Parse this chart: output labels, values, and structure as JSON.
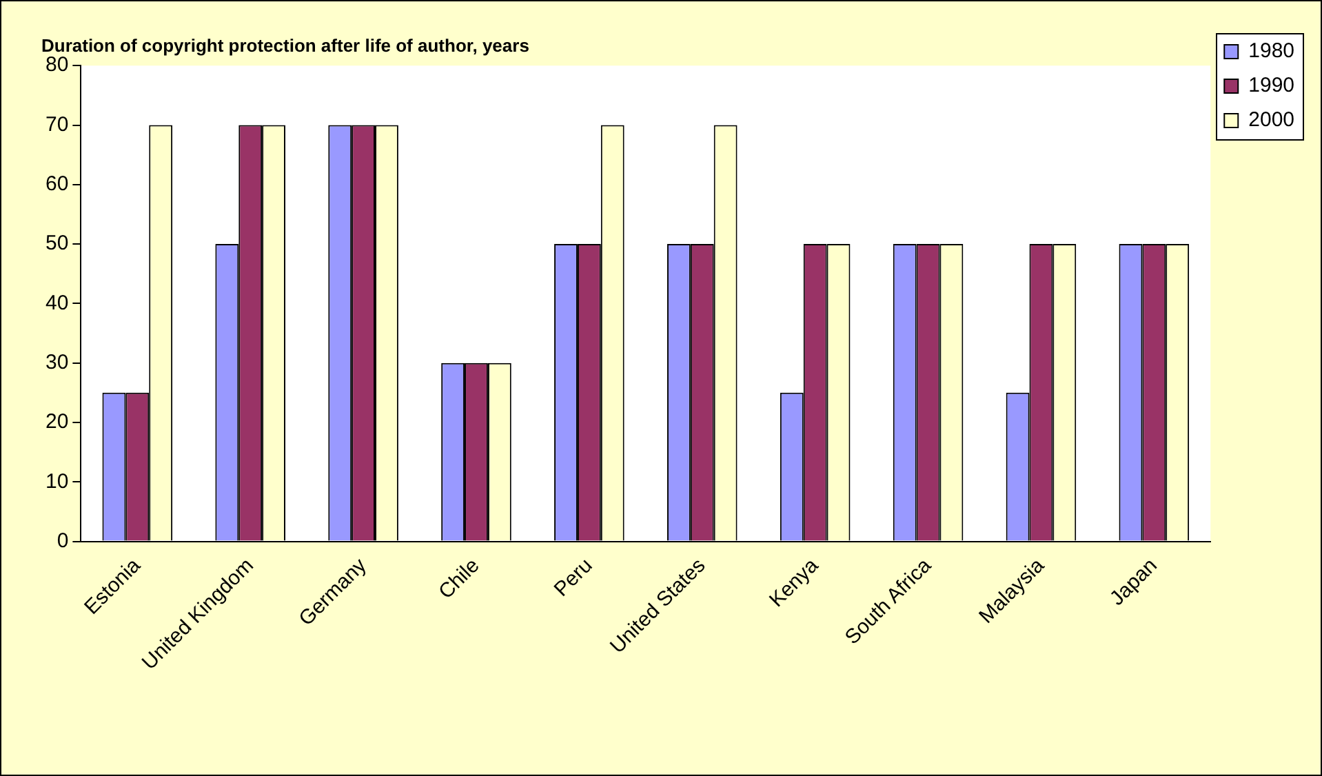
{
  "chart_data": {
    "type": "bar",
    "title": "Duration of copyright protection after life of author, years",
    "categories": [
      "Estonia",
      "United Kingdom",
      "Germany",
      "Chile",
      "Peru",
      "United States",
      "Kenya",
      "South Africa",
      "Malaysia",
      "Japan"
    ],
    "series": [
      {
        "name": "1980",
        "color": "#9999ff",
        "values": [
          25,
          50,
          70,
          30,
          50,
          50,
          25,
          50,
          25,
          50
        ]
      },
      {
        "name": "1990",
        "color": "#993366",
        "values": [
          25,
          70,
          70,
          30,
          50,
          50,
          50,
          50,
          50,
          50
        ]
      },
      {
        "name": "2000",
        "color": "#ffffcc",
        "values": [
          70,
          70,
          70,
          30,
          70,
          70,
          50,
          50,
          50,
          50
        ]
      }
    ],
    "ylim": [
      0,
      80
    ],
    "yticks": [
      0,
      10,
      20,
      30,
      40,
      50,
      60,
      70,
      80
    ],
    "grid": false,
    "legend": "top right"
  }
}
